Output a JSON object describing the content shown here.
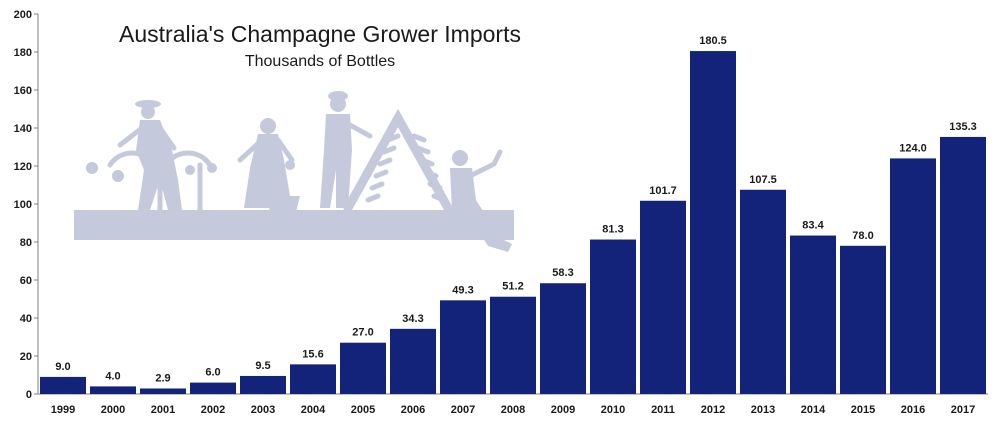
{
  "chart_data": {
    "type": "bar",
    "title": "Australia's Champagne Grower Imports",
    "subtitle": "Thousands of Bottles",
    "xlabel": "",
    "ylabel": "",
    "categories": [
      "1999",
      "2000",
      "2001",
      "2002",
      "2003",
      "2004",
      "2005",
      "2006",
      "2007",
      "2008",
      "2009",
      "2010",
      "2011",
      "2012",
      "2013",
      "2014",
      "2015",
      "2016",
      "2017"
    ],
    "values": [
      9.0,
      4.0,
      2.9,
      6.0,
      9.5,
      15.6,
      27.0,
      34.3,
      49.3,
      51.2,
      58.3,
      81.3,
      101.7,
      180.5,
      107.5,
      83.4,
      78.0,
      124.0,
      135.3
    ],
    "data_labels": [
      "9.0",
      "4.0",
      "2.9",
      "6.0",
      "9.5",
      "15.6",
      "27.0",
      "34.3",
      "49.3",
      "51.2",
      "58.3",
      "81.3",
      "101.7",
      "180.5",
      "107.5",
      "83.4",
      "78.0",
      "124.0",
      "135.3"
    ],
    "y_ticks": [
      "0",
      "20",
      "40",
      "60",
      "80",
      "100",
      "120",
      "140",
      "160",
      "180",
      "200"
    ],
    "ylim": [
      0,
      200
    ],
    "grid": false,
    "legend": "none",
    "colors": {
      "bar": "#13237a",
      "illustration": "#c5c9dc",
      "axis": "#7f7f7f"
    },
    "illustration": "winemaking-silhouette"
  }
}
